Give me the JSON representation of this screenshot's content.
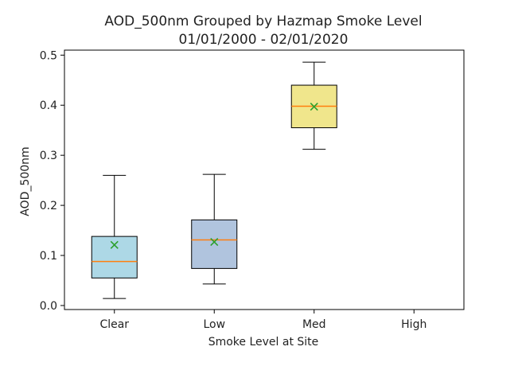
{
  "chart_data": {
    "type": "box",
    "title": "AOD_500nm Grouped by Hazmap Smoke Level",
    "subtitle": "01/01/2000 - 02/01/2020",
    "xlabel": "Smoke Level at Site",
    "ylabel": "AOD_500nm",
    "categories": [
      "Clear",
      "Low",
      "Med",
      "High"
    ],
    "ylim": [
      -0.008,
      0.51
    ],
    "yticks": [
      0.0,
      0.1,
      0.2,
      0.3,
      0.4,
      0.5
    ],
    "ytick_labels": [
      "0.0",
      "0.1",
      "0.2",
      "0.3",
      "0.4",
      "0.5"
    ],
    "boxes": [
      {
        "category": "Clear",
        "whisker_low": 0.014,
        "q1": 0.055,
        "median": 0.088,
        "q3": 0.138,
        "whisker_high": 0.26,
        "mean": 0.121,
        "fill": "#add8e6"
      },
      {
        "category": "Low",
        "whisker_low": 0.043,
        "q1": 0.074,
        "median": 0.131,
        "q3": 0.171,
        "whisker_high": 0.262,
        "mean": 0.127,
        "fill": "#b0c4de"
      },
      {
        "category": "Med",
        "whisker_low": 0.312,
        "q1": 0.355,
        "median": 0.398,
        "q3": 0.44,
        "whisker_high": 0.486,
        "mean": 0.397,
        "fill": "#f0e68c"
      },
      {
        "category": "High",
        "whisker_low": null,
        "q1": null,
        "median": null,
        "q3": null,
        "whisker_high": null,
        "mean": null,
        "fill": "#f08080"
      }
    ],
    "median_color": "#ff7f0e",
    "mean_marker": "x",
    "mean_color": "#2ca02c",
    "grid": false
  }
}
